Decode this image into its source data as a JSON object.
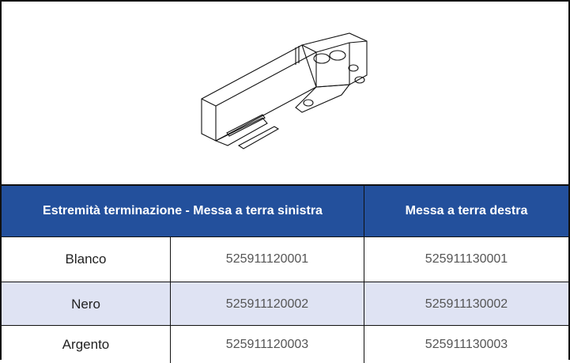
{
  "table": {
    "header": [
      "Estremità terminazione - Messa a terra sinistra",
      "Messa a terra destra"
    ],
    "rows": [
      [
        "Blanco",
        "525911120001",
        "525911130001"
      ],
      [
        "Nero",
        "525911120002",
        "525911130002"
      ],
      [
        "Argento",
        "525911120003",
        "525911130003"
      ]
    ]
  }
}
